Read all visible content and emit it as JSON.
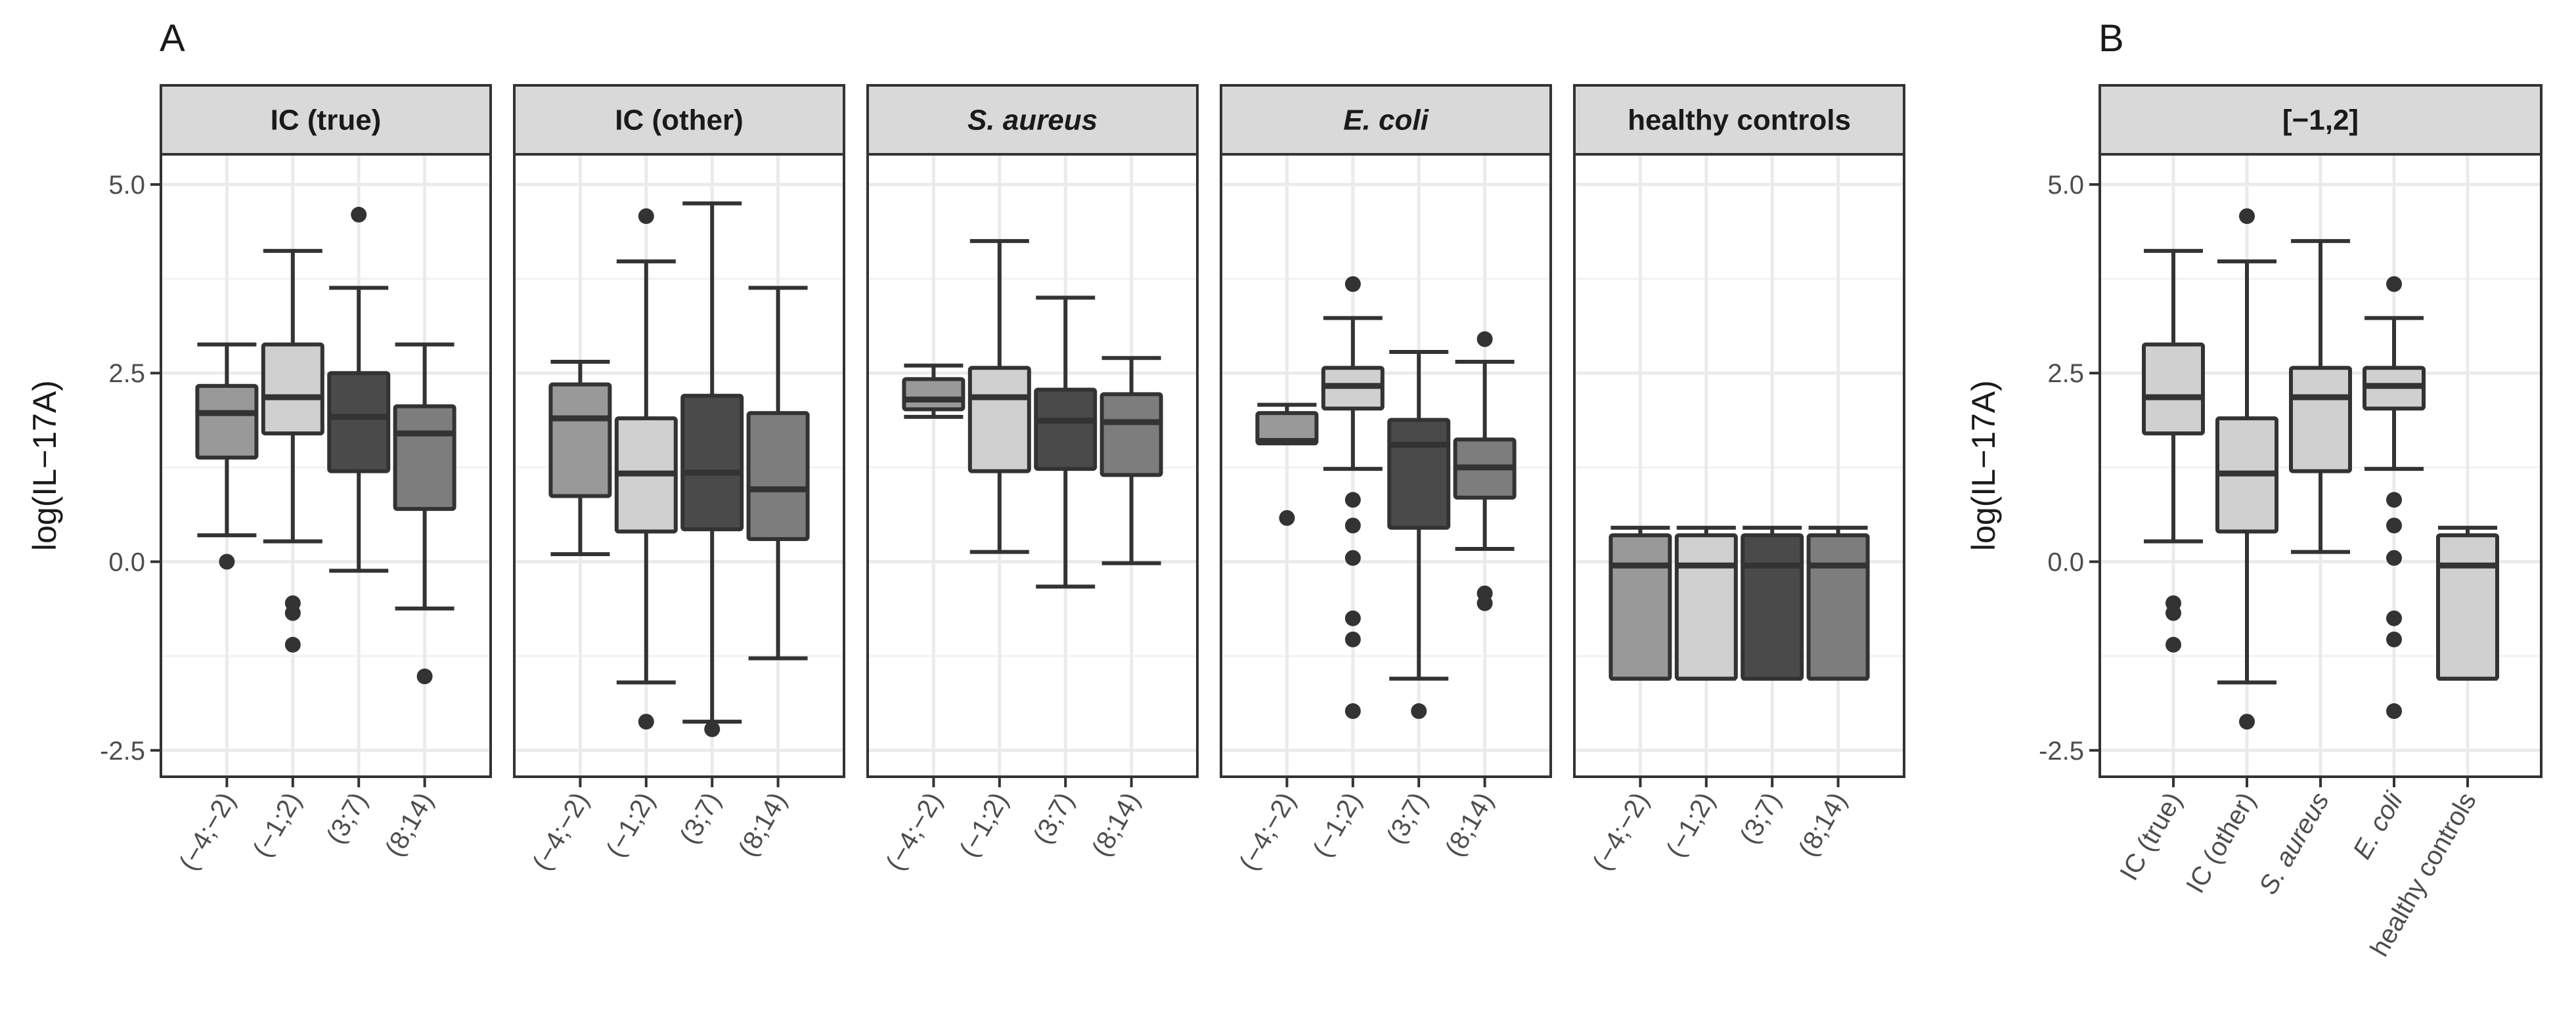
{
  "chart_data": [
    {
      "panel": "A",
      "type": "box",
      "ylabel": "log(IL−17A)",
      "ylim": [
        -2.85,
        5.4
      ],
      "yticks": [
        5.0,
        2.5,
        0.0,
        -2.5
      ],
      "ytick_labels": [
        "5.0",
        "2.5",
        "0.0",
        "-2.5"
      ],
      "grid": true,
      "categories": [
        "(−4;−2)",
        "(−1;2)",
        "(3;7)",
        "(8;14)"
      ],
      "fill_colors": [
        "#999999",
        "#d0d0d0",
        "#4a4a4a",
        "#7d7d7d"
      ],
      "facets": [
        {
          "title": "IC (true)",
          "italic": false,
          "boxes": [
            {
              "q1": 1.38,
              "median": 1.97,
              "q3": 2.33,
              "wlo": 0.35,
              "whi": 2.88,
              "outliers": [
                0.0
              ]
            },
            {
              "q1": 1.7,
              "median": 2.18,
              "q3": 2.88,
              "wlo": 0.27,
              "whi": 4.12,
              "outliers": [
                -0.55,
                -0.68,
                -1.1
              ]
            },
            {
              "q1": 1.2,
              "median": 1.92,
              "q3": 2.5,
              "wlo": -0.12,
              "whi": 3.63,
              "outliers": [
                4.6
              ]
            },
            {
              "q1": 0.7,
              "median": 1.7,
              "q3": 2.06,
              "wlo": -0.62,
              "whi": 2.88,
              "outliers": [
                -1.52
              ]
            }
          ]
        },
        {
          "title": "IC (other)",
          "italic": false,
          "boxes": [
            {
              "q1": 0.87,
              "median": 1.9,
              "q3": 2.35,
              "wlo": 0.1,
              "whi": 2.65,
              "outliers": []
            },
            {
              "q1": 0.4,
              "median": 1.17,
              "q3": 1.9,
              "wlo": -1.6,
              "whi": 3.98,
              "outliers": [
                4.58,
                -2.12
              ]
            },
            {
              "q1": 0.43,
              "median": 1.18,
              "q3": 2.2,
              "wlo": -2.12,
              "whi": 4.75,
              "outliers": [
                -2.22
              ]
            },
            {
              "q1": 0.3,
              "median": 0.96,
              "q3": 1.97,
              "wlo": -1.28,
              "whi": 3.63,
              "outliers": []
            }
          ]
        },
        {
          "title": "S. aureus",
          "italic": true,
          "boxes": [
            {
              "q1": 2.02,
              "median": 2.15,
              "q3": 2.42,
              "wlo": 1.92,
              "whi": 2.6,
              "outliers": []
            },
            {
              "q1": 1.2,
              "median": 2.18,
              "q3": 2.57,
              "wlo": 0.13,
              "whi": 4.25,
              "outliers": []
            },
            {
              "q1": 1.23,
              "median": 1.87,
              "q3": 2.28,
              "wlo": -0.33,
              "whi": 3.5,
              "outliers": []
            },
            {
              "q1": 1.15,
              "median": 1.85,
              "q3": 2.22,
              "wlo": -0.02,
              "whi": 2.7,
              "outliers": []
            }
          ]
        },
        {
          "title": "E. coli",
          "italic": true,
          "boxes": [
            {
              "q1": 1.57,
              "median": 1.6,
              "q3": 1.97,
              "wlo": 1.57,
              "whi": 2.08,
              "outliers": [
                0.58
              ]
            },
            {
              "q1": 2.03,
              "median": 2.33,
              "q3": 2.57,
              "wlo": 1.23,
              "whi": 3.23,
              "outliers": [
                3.68,
                0.82,
                0.48,
                0.05,
                -0.75,
                -1.03,
                -1.98
              ]
            },
            {
              "q1": 0.45,
              "median": 1.55,
              "q3": 1.88,
              "wlo": -1.55,
              "whi": 2.78,
              "outliers": [
                -1.98
              ]
            },
            {
              "q1": 0.85,
              "median": 1.25,
              "q3": 1.62,
              "wlo": 0.17,
              "whi": 2.65,
              "outliers": [
                2.95,
                -0.42,
                -0.55
              ]
            }
          ]
        },
        {
          "title": "healthy controls",
          "italic": false,
          "boxes": [
            {
              "q1": -1.55,
              "median": -0.05,
              "q3": 0.35,
              "wlo": -1.55,
              "whi": 0.45,
              "outliers": []
            },
            {
              "q1": -1.55,
              "median": -0.05,
              "q3": 0.35,
              "wlo": -1.55,
              "whi": 0.45,
              "outliers": []
            },
            {
              "q1": -1.55,
              "median": -0.05,
              "q3": 0.35,
              "wlo": -1.55,
              "whi": 0.45,
              "outliers": []
            },
            {
              "q1": -1.55,
              "median": -0.05,
              "q3": 0.35,
              "wlo": -1.55,
              "whi": 0.45,
              "outliers": []
            }
          ]
        }
      ]
    },
    {
      "panel": "B",
      "type": "box",
      "ylabel": "log(IL−17A)",
      "ylim": [
        -2.85,
        5.4
      ],
      "yticks": [
        5.0,
        2.5,
        0.0,
        -2.5
      ],
      "ytick_labels": [
        "5.0",
        "2.5",
        "0.0",
        "-2.5"
      ],
      "grid": true,
      "facet_title": "[−1,2]",
      "categories": [
        {
          "label": "IC (true)",
          "italic": false
        },
        {
          "label": "IC (other)",
          "italic": false
        },
        {
          "label": "S. aureus",
          "italic": true
        },
        {
          "label": "E. coli",
          "italic": true
        },
        {
          "label": "healthy controls",
          "italic": false
        }
      ],
      "fill_color": "#d0d0d0",
      "boxes": [
        {
          "q1": 1.7,
          "median": 2.18,
          "q3": 2.88,
          "wlo": 0.27,
          "whi": 4.12,
          "outliers": [
            -0.55,
            -0.68,
            -1.1
          ]
        },
        {
          "q1": 0.4,
          "median": 1.17,
          "q3": 1.9,
          "wlo": -1.6,
          "whi": 3.98,
          "outliers": [
            4.58,
            -2.12
          ]
        },
        {
          "q1": 1.2,
          "median": 2.18,
          "q3": 2.57,
          "wlo": 0.13,
          "whi": 4.25,
          "outliers": []
        },
        {
          "q1": 2.03,
          "median": 2.33,
          "q3": 2.57,
          "wlo": 1.23,
          "whi": 3.23,
          "outliers": [
            3.68,
            0.82,
            0.48,
            0.05,
            -0.75,
            -1.03,
            -1.98
          ]
        },
        {
          "q1": -1.55,
          "median": -0.05,
          "q3": 0.35,
          "wlo": -1.55,
          "whi": 0.45,
          "outliers": []
        }
      ]
    }
  ]
}
